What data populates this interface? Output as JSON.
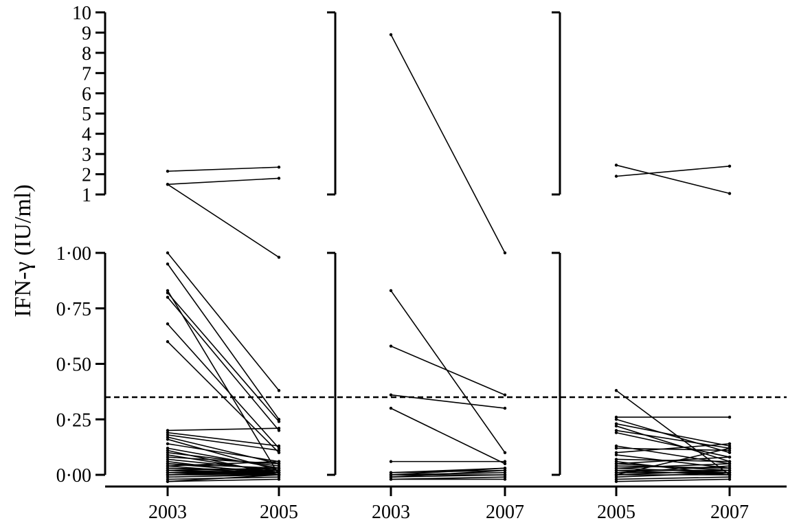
{
  "chart_data": {
    "type": "line",
    "ylabel": "IFN-γ (IU/ml)",
    "y_upper_ticks": [
      "1",
      "2",
      "3",
      "4",
      "5",
      "6",
      "7",
      "8",
      "9",
      "10"
    ],
    "y_lower_ticks": [
      "0·00",
      "0·25",
      "0·50",
      "0·75",
      "1·00"
    ],
    "ylim_upper": [
      1,
      10
    ],
    "ylim_lower": [
      0,
      1
    ],
    "cutoff_line": 0.35,
    "panels": [
      {
        "x": [
          "2003",
          "2005"
        ],
        "pairs": [
          [
            2.15,
            2.35
          ],
          [
            1.5,
            1.8
          ],
          [
            1.5,
            0.98
          ],
          [
            0.95,
            0.25
          ],
          [
            1.0,
            0.38
          ],
          [
            0.83,
            0.0
          ],
          [
            0.82,
            0.24
          ],
          [
            0.8,
            0.2
          ],
          [
            0.68,
            0.12
          ],
          [
            0.6,
            0.1
          ],
          [
            0.2,
            0.21
          ],
          [
            0.19,
            0.13
          ],
          [
            0.18,
            0.11
          ],
          [
            0.17,
            0.05
          ],
          [
            0.16,
            0.02
          ],
          [
            0.14,
            0.06
          ],
          [
            0.12,
            0.03
          ],
          [
            0.11,
            0.0
          ],
          [
            0.1,
            0.04
          ],
          [
            0.09,
            0.01
          ],
          [
            0.08,
            0.05
          ],
          [
            0.07,
            0.02
          ],
          [
            0.06,
            0.0
          ],
          [
            0.05,
            0.03
          ],
          [
            0.05,
            0.01
          ],
          [
            0.04,
            0.06
          ],
          [
            0.04,
            0.0
          ],
          [
            0.03,
            0.02
          ],
          [
            0.03,
            0.01
          ],
          [
            0.02,
            0.03
          ],
          [
            0.02,
            0.0
          ],
          [
            0.02,
            0.01
          ],
          [
            0.01,
            0.02
          ],
          [
            0.01,
            0.0
          ],
          [
            0.01,
            0.01
          ],
          [
            0.0,
            0.0
          ],
          [
            0.0,
            0.02
          ],
          [
            0.0,
            0.01
          ],
          [
            -0.01,
            0.0
          ],
          [
            -0.02,
            -0.01
          ],
          [
            -0.03,
            0.0
          ],
          [
            -0.03,
            -0.02
          ]
        ]
      },
      {
        "x": [
          "2003",
          "2007"
        ],
        "pairs": [
          [
            8.9,
            1.0
          ],
          [
            0.83,
            0.1
          ],
          [
            0.58,
            0.36
          ],
          [
            0.36,
            0.3
          ],
          [
            0.3,
            0.05
          ],
          [
            0.06,
            0.06
          ],
          [
            0.01,
            0.03
          ],
          [
            0.01,
            0.02
          ],
          [
            0.0,
            0.03
          ],
          [
            0.0,
            0.01
          ],
          [
            0.0,
            0.0
          ],
          [
            -0.01,
            0.0
          ],
          [
            -0.01,
            0.02
          ],
          [
            -0.02,
            -0.01
          ],
          [
            -0.02,
            -0.02
          ]
        ]
      },
      {
        "x": [
          "2005",
          "2007"
        ],
        "pairs": [
          [
            1.9,
            2.4
          ],
          [
            2.45,
            1.05
          ],
          [
            0.38,
            0.0
          ],
          [
            0.26,
            0.26
          ],
          [
            0.25,
            0.1
          ],
          [
            0.23,
            0.13
          ],
          [
            0.22,
            0.06
          ],
          [
            0.2,
            0.12
          ],
          [
            0.19,
            0.08
          ],
          [
            0.13,
            0.05
          ],
          [
            0.12,
            0.11
          ],
          [
            0.1,
            0.14
          ],
          [
            0.09,
            0.03
          ],
          [
            0.07,
            0.06
          ],
          [
            0.06,
            0.0
          ],
          [
            0.05,
            0.02
          ],
          [
            0.05,
            0.08
          ],
          [
            0.04,
            0.03
          ],
          [
            0.03,
            0.01
          ],
          [
            0.03,
            0.05
          ],
          [
            0.02,
            0.02
          ],
          [
            0.02,
            0.0
          ],
          [
            0.01,
            0.04
          ],
          [
            0.01,
            0.01
          ],
          [
            0.0,
            0.02
          ],
          [
            0.0,
            0.0
          ],
          [
            0.0,
            0.12
          ],
          [
            -0.01,
            0.01
          ],
          [
            -0.02,
            -0.01
          ],
          [
            -0.03,
            -0.02
          ]
        ]
      }
    ]
  }
}
